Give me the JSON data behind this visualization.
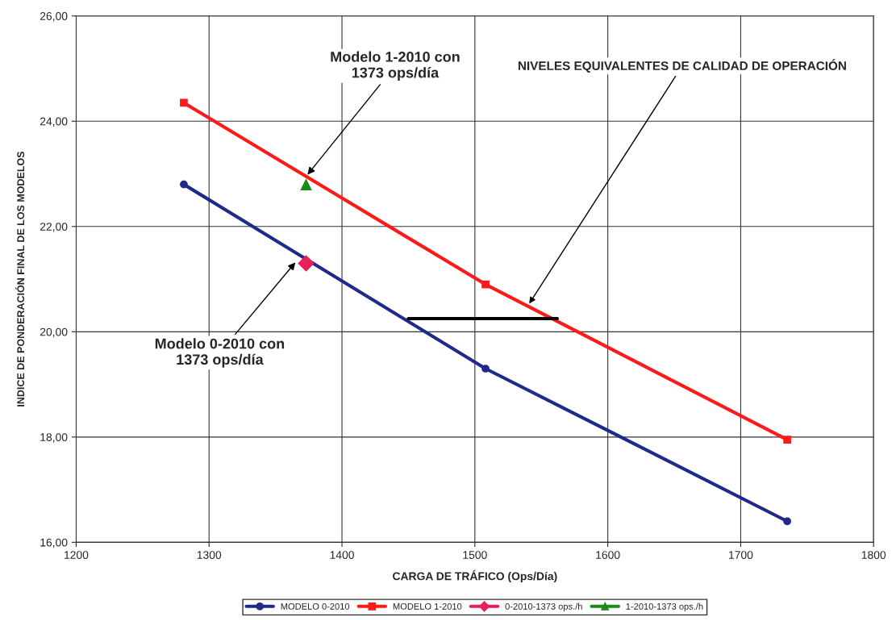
{
  "chart_data": {
    "type": "line",
    "xlabel": "CARGA DE TRÁFICO (Ops/Día)",
    "ylabel": "INDICE DE PONDERACIÓN FINAL DE LOS MODELOS",
    "xlim": [
      1200,
      1800
    ],
    "xticks": [
      1200,
      1300,
      1400,
      1500,
      1600,
      1700,
      1800
    ],
    "ylim": [
      16,
      26
    ],
    "yticks": [
      {
        "value": 16,
        "label": "16,00"
      },
      {
        "value": 18,
        "label": "18,00"
      },
      {
        "value": 20,
        "label": "20,00"
      },
      {
        "value": 22,
        "label": "22,00"
      },
      {
        "value": 24,
        "label": "24,00"
      },
      {
        "value": 26,
        "label": "26,00"
      }
    ],
    "grid": true,
    "legend": "bottom",
    "series": [
      {
        "name": "MODELO 0-2010",
        "color": "#1f2a8a",
        "marker": "circle",
        "x": [
          1281,
          1508,
          1735
        ],
        "values": [
          22.8,
          19.3,
          16.4
        ]
      },
      {
        "name": "MODELO 1-2010",
        "color": "#ff1a1a",
        "marker": "square",
        "x": [
          1281,
          1508,
          1735
        ],
        "values": [
          24.35,
          20.9,
          17.95
        ]
      },
      {
        "name": "0-2010-1373 ops./h",
        "type": "scatter",
        "color": "#e8205a",
        "marker": "diamond",
        "x": [
          1373
        ],
        "values": [
          21.3
        ]
      },
      {
        "name": "1-2010-1373 ops./h",
        "type": "scatter",
        "color": "#1a8a1a",
        "marker": "triangle",
        "x": [
          1373
        ],
        "values": [
          22.8
        ]
      },
      {
        "color": "#000000",
        "marker": "none",
        "x": [
          1450,
          1562
        ],
        "values": [
          20.25,
          20.25
        ]
      }
    ],
    "annotations": [
      {
        "text": "Modelo 1-2010 con\n1373 ops/día",
        "x": 1373,
        "y": 22.95
      },
      {
        "text": "NIVELES EQUIVALENTES DE CALIDAD DE OPERACIÓN",
        "x": 1540,
        "y": 20.5
      },
      {
        "text": "Modelo 0-2010 con\n1373 ops/día",
        "x": 1366,
        "y": 21.35
      }
    ]
  }
}
